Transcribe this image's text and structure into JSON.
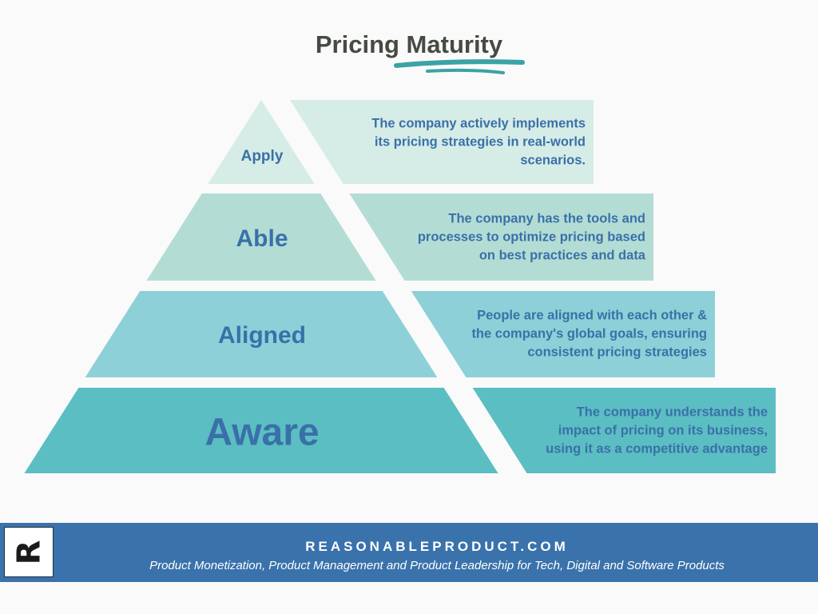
{
  "title": "Pricing Maturity",
  "colors": {
    "title": "#454b42",
    "underline": "#3aa3a6",
    "text": "#3a70a9",
    "footer": "#3a72ab"
  },
  "levels": [
    {
      "label": "Apply",
      "description": "The company actively implements\nits pricing strategies in real-world\nscenarios.",
      "color": "#d6ece6"
    },
    {
      "label": "Able",
      "description": "The company has the tools and\nprocesses to optimize pricing based\non best practices and data",
      "color": "#b3ddd4"
    },
    {
      "label": "Aligned",
      "description": "People are aligned with each other &\nthe company's global goals, ensuring\nconsistent pricing strategies",
      "color": "#8dd0d7"
    },
    {
      "label": "Aware",
      "description": "The company understands the\nimpact of pricing on its business,\nusing it as a competitive advantage",
      "color": "#5bbec2"
    }
  ],
  "footer": {
    "logo_letter": "R",
    "site": "REASONABLEPRODUCT.COM",
    "tagline": "Product Monetization, Product Management and Product Leadership for Tech, Digital and Software Products"
  }
}
